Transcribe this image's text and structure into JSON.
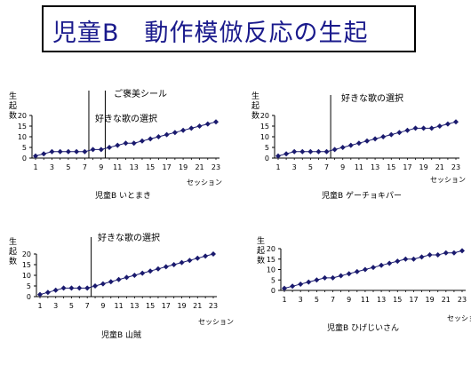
{
  "title": "児童B　動作模倣反応の生起",
  "colors": {
    "title": "#1a1a8c",
    "series": "#1a1a6e",
    "axis": "#000000"
  },
  "chart_data": [
    {
      "type": "line",
      "ylabel": "生\n起\n数",
      "xlabel": "セッション",
      "caption": "児童B いとまき",
      "x": [
        1,
        2,
        3,
        4,
        5,
        6,
        7,
        8,
        9,
        10,
        11,
        12,
        13,
        14,
        15,
        16,
        17,
        18,
        19,
        20,
        21,
        22,
        23
      ],
      "x_tick_labels": [
        "1",
        "3",
        "5",
        "7",
        "9",
        "11",
        "13",
        "15",
        "17",
        "19",
        "21",
        "23"
      ],
      "y_tick_labels": [
        "0",
        "5",
        "10",
        "15",
        "20"
      ],
      "ylim": [
        0,
        20
      ],
      "series": [
        {
          "values": [
            1,
            2,
            3,
            3,
            3,
            3,
            3,
            4,
            4,
            5,
            6,
            7,
            7,
            8,
            9,
            10,
            11,
            12,
            13,
            14,
            15,
            16,
            17
          ]
        }
      ],
      "annotations": [
        {
          "text": "ご褒美シール",
          "x": 9.5
        },
        {
          "text": "好きな歌の選択",
          "x": 7.5
        }
      ],
      "grid": false
    },
    {
      "type": "line",
      "ylabel": "生\n起\n数",
      "xlabel": "セッション",
      "caption": "児童B ゲーチョキパー",
      "x": [
        1,
        2,
        3,
        4,
        5,
        6,
        7,
        8,
        9,
        10,
        11,
        12,
        13,
        14,
        15,
        16,
        17,
        18,
        19,
        20,
        21,
        22,
        23
      ],
      "x_tick_labels": [
        "1",
        "3",
        "5",
        "7",
        "9",
        "11",
        "13",
        "15",
        "17",
        "19",
        "21",
        "23"
      ],
      "y_tick_labels": [
        "0",
        "5",
        "10",
        "15",
        "20"
      ],
      "ylim": [
        0,
        20
      ],
      "series": [
        {
          "values": [
            1,
            2,
            3,
            3,
            3,
            3,
            3,
            4,
            5,
            6,
            7,
            8,
            9,
            10,
            11,
            12,
            13,
            14,
            14,
            14,
            15,
            16,
            17
          ]
        }
      ],
      "annotations": [
        {
          "text": "好きな歌の選択",
          "x": 7.5
        }
      ],
      "grid": false
    },
    {
      "type": "line",
      "ylabel": "生\n起\n数",
      "xlabel": "セッション",
      "caption": "児童B 山賊",
      "x": [
        1,
        2,
        3,
        4,
        5,
        6,
        7,
        8,
        9,
        10,
        11,
        12,
        13,
        14,
        15,
        16,
        17,
        18,
        19,
        20,
        21,
        22,
        23
      ],
      "x_tick_labels": [
        "1",
        "3",
        "5",
        "7",
        "9",
        "11",
        "13",
        "15",
        "17",
        "19",
        "21",
        "23"
      ],
      "y_tick_labels": [
        "0",
        "5",
        "10",
        "15",
        "20"
      ],
      "ylim": [
        0,
        20
      ],
      "series": [
        {
          "values": [
            1,
            2,
            3,
            4,
            4,
            4,
            4,
            5,
            6,
            7,
            8,
            9,
            10,
            11,
            12,
            13,
            14,
            15,
            16,
            17,
            18,
            19,
            20
          ]
        }
      ],
      "annotations": [
        {
          "text": "好きな歌の選択",
          "x": 7.5
        }
      ],
      "grid": false
    },
    {
      "type": "line",
      "ylabel": "生\n起\n数",
      "xlabel": "セッション",
      "caption": "児童B ひげじいさん",
      "x": [
        1,
        2,
        3,
        4,
        5,
        6,
        7,
        8,
        9,
        10,
        11,
        12,
        13,
        14,
        15,
        16,
        17,
        18,
        19,
        20,
        21,
        22,
        23
      ],
      "x_tick_labels": [
        "1",
        "3",
        "5",
        "7",
        "9",
        "11",
        "13",
        "15",
        "17",
        "19",
        "21",
        "23"
      ],
      "y_tick_labels": [
        "0",
        "5",
        "10",
        "15",
        "20"
      ],
      "ylim": [
        0,
        20
      ],
      "series": [
        {
          "values": [
            1,
            2,
            3,
            4,
            5,
            6,
            6,
            7,
            8,
            9,
            10,
            11,
            12,
            13,
            14,
            15,
            15,
            16,
            17,
            17,
            18,
            18,
            19
          ]
        }
      ],
      "annotations": [],
      "grid": false
    }
  ]
}
